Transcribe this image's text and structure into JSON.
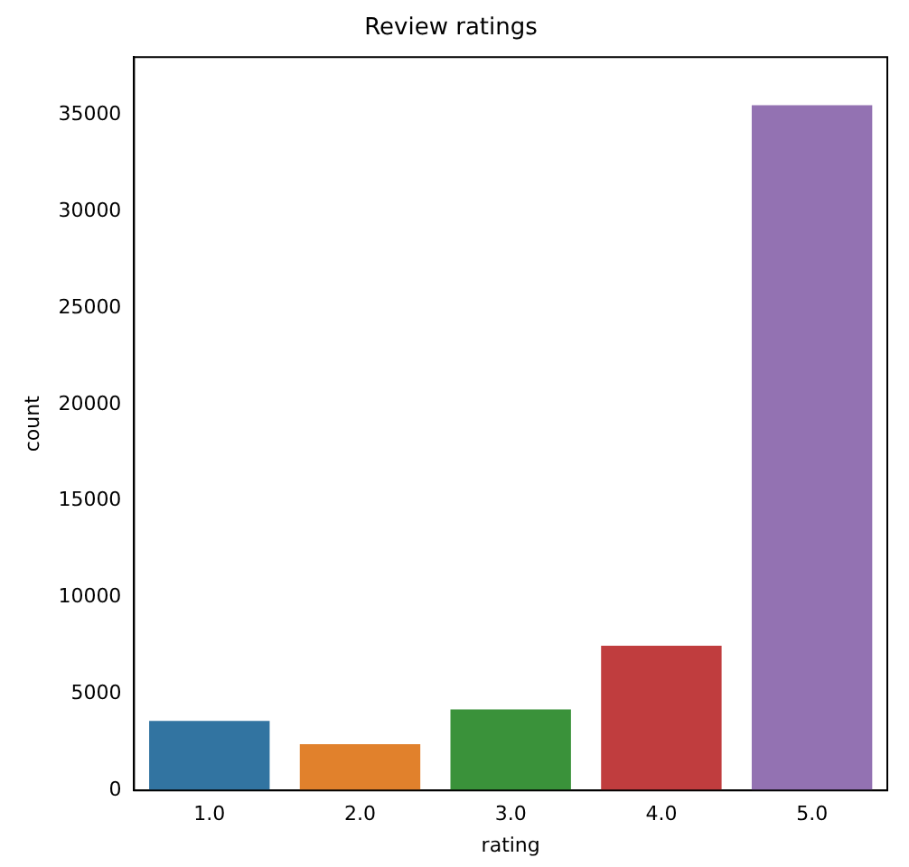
{
  "chart_data": {
    "type": "bar",
    "title": "Review ratings",
    "xlabel": "rating",
    "ylabel": "count",
    "categories": [
      "1.0",
      "2.0",
      "3.0",
      "4.0",
      "5.0"
    ],
    "values": [
      3600,
      2400,
      4200,
      7500,
      35500
    ],
    "colors": [
      "#3274a1",
      "#e1812c",
      "#3a923a",
      "#c03d3e",
      "#9372b2"
    ],
    "ylim": [
      0,
      38000
    ],
    "yticks": [
      0,
      5000,
      10000,
      15000,
      20000,
      25000,
      30000,
      35000
    ],
    "grid": false,
    "legend": false
  }
}
